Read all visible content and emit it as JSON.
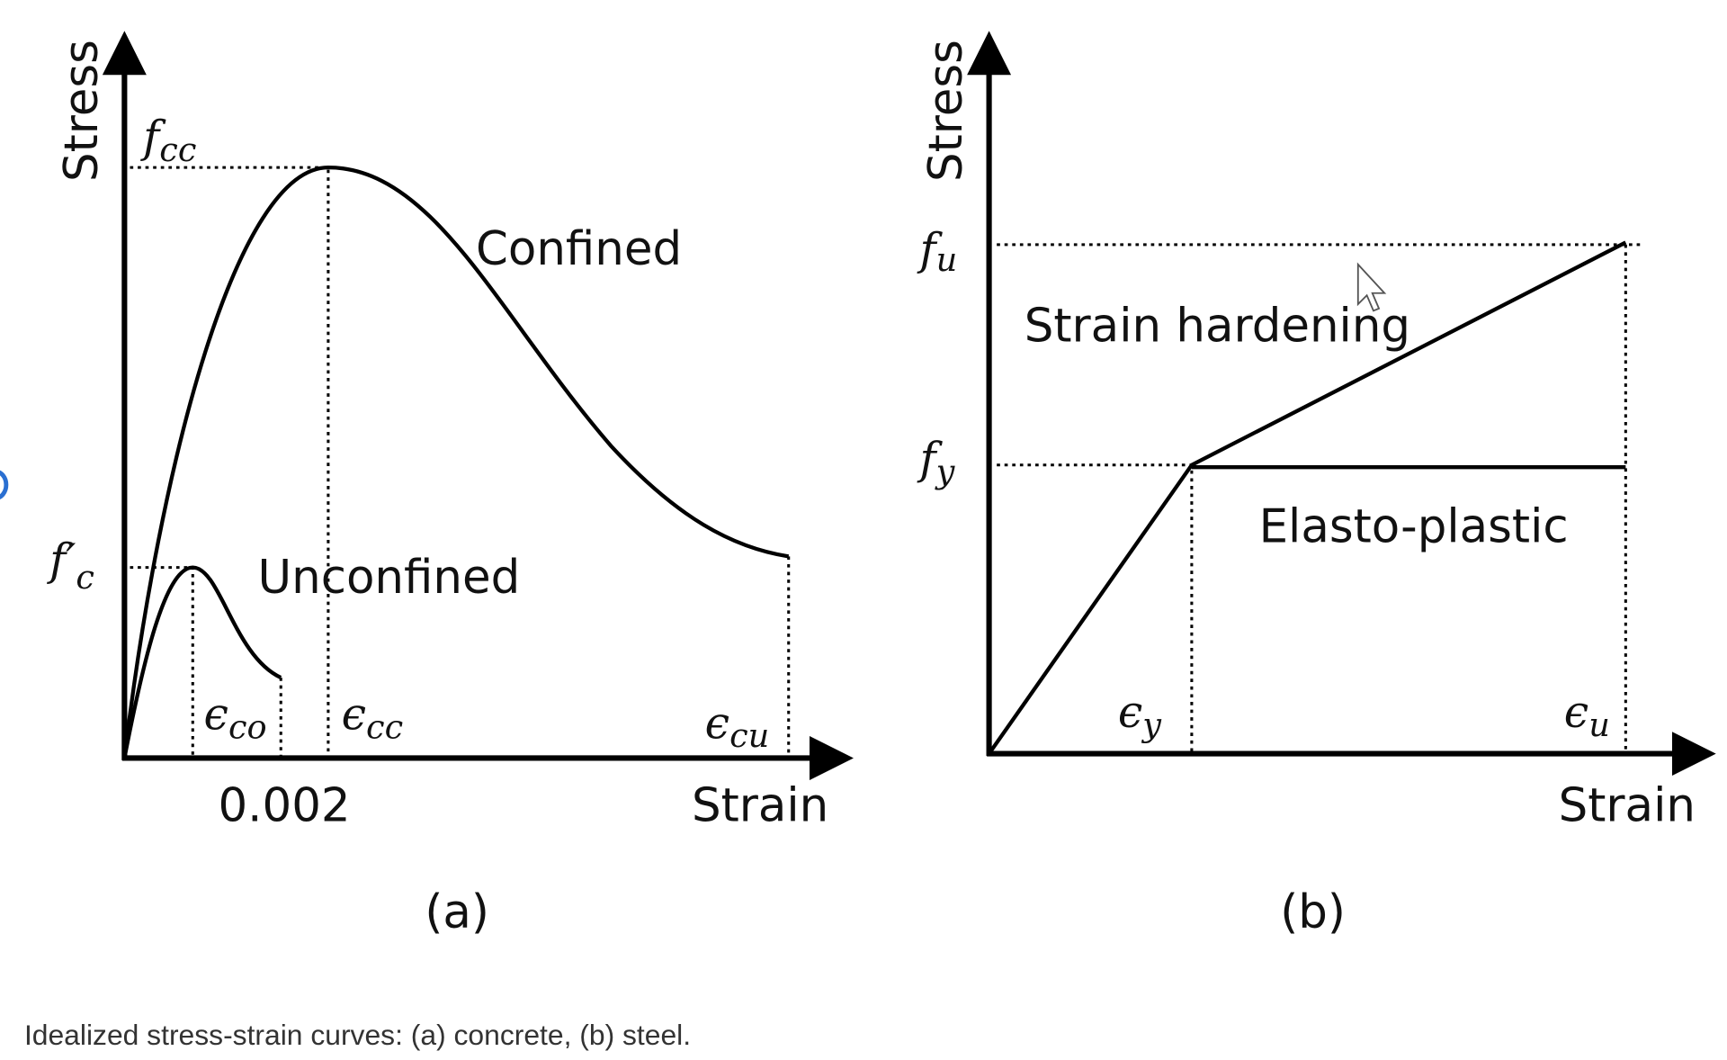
{
  "panel_a": {
    "y_axis_label": "Stress",
    "x_axis_label": "Strain",
    "tag": "(a)",
    "curve_labels": [
      "Confined",
      "Unconfined"
    ],
    "strain_value": "0.002",
    "stress_symbols": [
      {
        "symbol": "f",
        "subscript": "cc"
      },
      {
        "symbol": "f′",
        "subscript": "c"
      }
    ],
    "strain_symbols": [
      {
        "symbol": "ϵ",
        "subscript": "co"
      },
      {
        "symbol": "ϵ",
        "subscript": "cc"
      },
      {
        "symbol": "ϵ",
        "subscript": "cu"
      }
    ]
  },
  "panel_b": {
    "y_axis_label": "Stress",
    "x_axis_label": "Strain",
    "tag": "(b)",
    "curve_labels": [
      "Strain hardening",
      "Elasto-plastic"
    ],
    "stress_symbols": [
      {
        "symbol": "f",
        "subscript": "u"
      },
      {
        "symbol": "f",
        "subscript": "y"
      }
    ],
    "strain_symbols": [
      {
        "symbol": "ϵ",
        "subscript": "y"
      },
      {
        "symbol": "ϵ",
        "subscript": "u"
      }
    ]
  },
  "caption": "Idealized stress-strain curves: (a) concrete, (b) steel."
}
